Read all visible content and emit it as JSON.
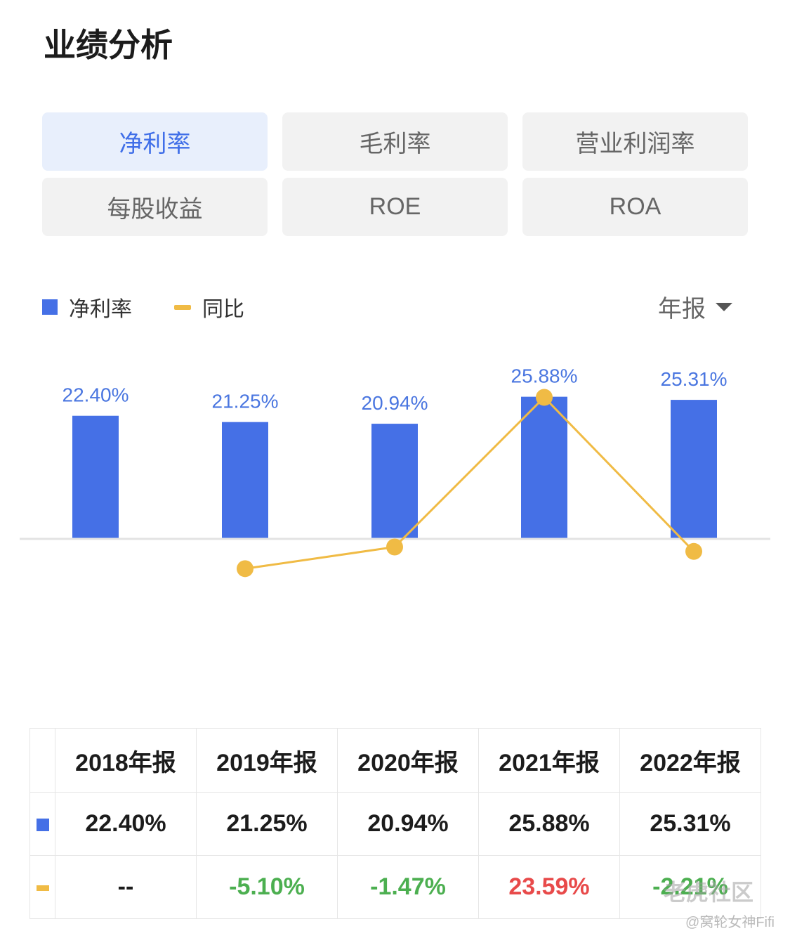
{
  "page": {
    "title": "业绩分析"
  },
  "tabs": [
    {
      "label": "净利率",
      "active": true
    },
    {
      "label": "毛利率",
      "active": false
    },
    {
      "label": "营业利润率",
      "active": false
    },
    {
      "label": "每股收益",
      "active": false
    },
    {
      "label": "ROE",
      "active": false
    },
    {
      "label": "ROA",
      "active": false
    }
  ],
  "legend": {
    "bar_label": "净利率",
    "line_label": "同比"
  },
  "period_selector": {
    "label": "年报"
  },
  "colors": {
    "bar": "#4570e6",
    "line": "#f0bb45",
    "bar_label": "#4a76e0",
    "negative": "#4caf50",
    "positive": "#e84a4a",
    "active_tab": "#3f6ee8"
  },
  "chart_data": {
    "type": "bar",
    "categories": [
      "2018年报",
      "2019年报",
      "2020年报",
      "2021年报",
      "2022年报"
    ],
    "series": [
      {
        "name": "净利率",
        "type": "bar",
        "values": [
          22.4,
          21.25,
          20.94,
          25.88,
          25.31
        ]
      },
      {
        "name": "同比",
        "type": "line",
        "values": [
          null,
          -5.1,
          -1.47,
          23.59,
          -2.21
        ]
      }
    ],
    "data_labels": [
      "22.40%",
      "21.25%",
      "20.94%",
      "25.88%",
      "25.31%"
    ]
  },
  "table": {
    "headers": [
      "2018年报",
      "2019年报",
      "2020年报",
      "2021年报",
      "2022年报"
    ],
    "net_margin_row": [
      "22.40%",
      "21.25%",
      "20.94%",
      "25.88%",
      "25.31%"
    ],
    "yoy_row": [
      "--",
      "-5.10%",
      "-1.47%",
      "23.59%",
      "-2.21%"
    ]
  },
  "watermark": {
    "text": "老虎社区",
    "credit": "@窝轮女神Fifi"
  }
}
